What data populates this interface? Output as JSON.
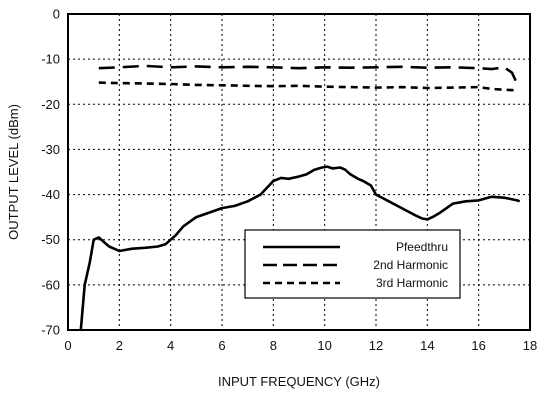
{
  "chart_data": {
    "type": "line",
    "xlabel": "INPUT FREQUENCY (GHz)",
    "ylabel": "OUTPUT LEVEL (dBm)",
    "xlim": [
      0,
      18
    ],
    "ylim": [
      -70,
      0
    ],
    "xticks": [
      0,
      2,
      4,
      6,
      8,
      10,
      12,
      14,
      16,
      18
    ],
    "yticks": [
      0,
      -10,
      -20,
      -30,
      -40,
      -50,
      -60,
      -70
    ],
    "grid": true,
    "legend_position": "lower-right",
    "series": [
      {
        "name": "Pfeedthru",
        "style": "solid",
        "x": [
          0.5,
          0.65,
          0.85,
          1.0,
          1.2,
          1.4,
          1.6,
          1.8,
          2.0,
          2.5,
          3.0,
          3.5,
          3.8,
          4.0,
          4.2,
          4.5,
          5.0,
          5.5,
          6.0,
          6.5,
          7.0,
          7.5,
          8.0,
          8.3,
          8.6,
          9.0,
          9.3,
          9.6,
          9.9,
          10.1,
          10.3,
          10.6,
          10.8,
          11.0,
          11.3,
          11.5,
          11.8,
          12.0,
          12.5,
          13.0,
          13.5,
          13.8,
          14.0,
          14.2,
          14.5,
          15.0,
          15.5,
          16.0,
          16.5,
          17.0,
          17.5,
          17.6
        ],
        "y": [
          -70,
          -60,
          -55,
          -50,
          -49.5,
          -50.5,
          -51.5,
          -52,
          -52.5,
          -52,
          -51.8,
          -51.5,
          -51,
          -50,
          -49,
          -47,
          -45,
          -44,
          -43,
          -42.5,
          -41.5,
          -40,
          -37,
          -36.3,
          -36.5,
          -36,
          -35.5,
          -34.5,
          -34,
          -33.8,
          -34.2,
          -34,
          -34.5,
          -35.5,
          -36.5,
          -37,
          -38,
          -40,
          -41.5,
          -43,
          -44.5,
          -45.3,
          -45.5,
          -45,
          -44,
          -42,
          -41.5,
          -41.3,
          -40.5,
          -40.7,
          -41.3,
          -41.5
        ]
      },
      {
        "name": "2nd Harmonic",
        "style": "long-dash",
        "x": [
          1.2,
          2,
          3,
          4,
          5,
          6,
          7,
          8,
          9,
          10,
          11,
          12,
          13,
          14,
          15,
          16,
          16.5,
          17,
          17.3,
          17.5
        ],
        "y": [
          -12,
          -11.8,
          -11.5,
          -11.8,
          -11.6,
          -11.8,
          -11.7,
          -11.8,
          -12,
          -11.8,
          -11.9,
          -11.8,
          -11.7,
          -11.9,
          -11.8,
          -12,
          -12.2,
          -11.8,
          -13,
          -15.5
        ]
      },
      {
        "name": "3rd Harmonic",
        "style": "short-dash",
        "x": [
          1.2,
          2,
          3,
          4,
          5,
          6,
          7,
          8,
          9,
          10,
          11,
          12,
          13,
          14,
          15,
          16,
          16.5,
          17,
          17.5
        ],
        "y": [
          -15.2,
          -15.3,
          -15.4,
          -15.5,
          -15.7,
          -15.8,
          -15.9,
          -16,
          -15.9,
          -16.1,
          -16.2,
          -16.3,
          -16.2,
          -16.4,
          -16.3,
          -16.2,
          -16.6,
          -16.8,
          -16.9
        ]
      }
    ]
  }
}
